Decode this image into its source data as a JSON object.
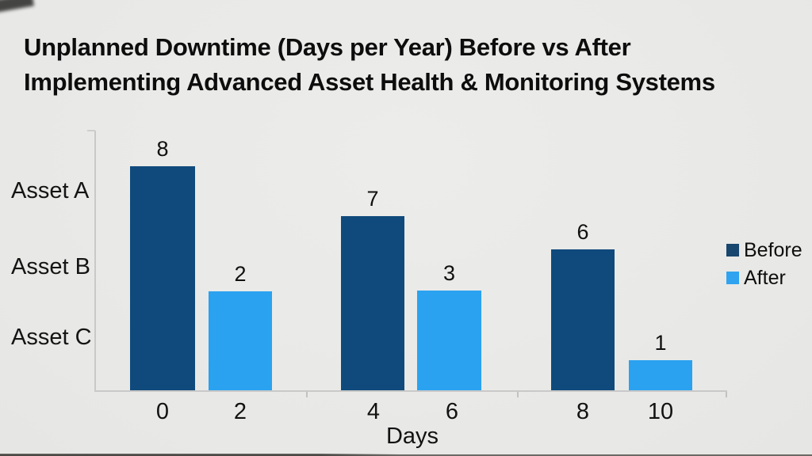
{
  "title": {
    "line1": "Unplanned Downtime (Days per Year) Before vs After",
    "line2": "Implementing Advanced Asset Health & Monitoring Systems"
  },
  "chart_data": {
    "type": "bar",
    "title": "Unplanned Downtime (Days per Year) Before vs After Implementing Advanced Asset Health & Monitoring Systems",
    "xlabel": "Days",
    "x_tick_labels": [
      "0",
      "2",
      "4",
      "6",
      "8",
      "10"
    ],
    "x_axis_range": [
      0,
      10
    ],
    "left_axis_labels": [
      "Asset A",
      "Asset B",
      "Asset C"
    ],
    "series": [
      {
        "name": "Before",
        "color": "#104a7c",
        "values": [
          8,
          7,
          6
        ]
      },
      {
        "name": "After",
        "color": "#2aa2f0",
        "values": [
          2,
          3,
          1
        ]
      }
    ],
    "bars": [
      {
        "group": 1,
        "series": "Before",
        "value": 8
      },
      {
        "group": 1,
        "series": "After",
        "value": 2
      },
      {
        "group": 2,
        "series": "Before",
        "value": 7
      },
      {
        "group": 2,
        "series": "After",
        "value": 3
      },
      {
        "group": 3,
        "series": "Before",
        "value": 6
      },
      {
        "group": 3,
        "series": "After",
        "value": 1
      }
    ],
    "legend": {
      "position": "right",
      "entries": [
        "Before",
        "After"
      ]
    },
    "grid": false
  },
  "colors": {
    "background": "#e9e9e7",
    "before": "#104a7c",
    "after": "#2aa2f0",
    "axis_line": "#c9c9c9",
    "text": "#0c0c0c"
  }
}
